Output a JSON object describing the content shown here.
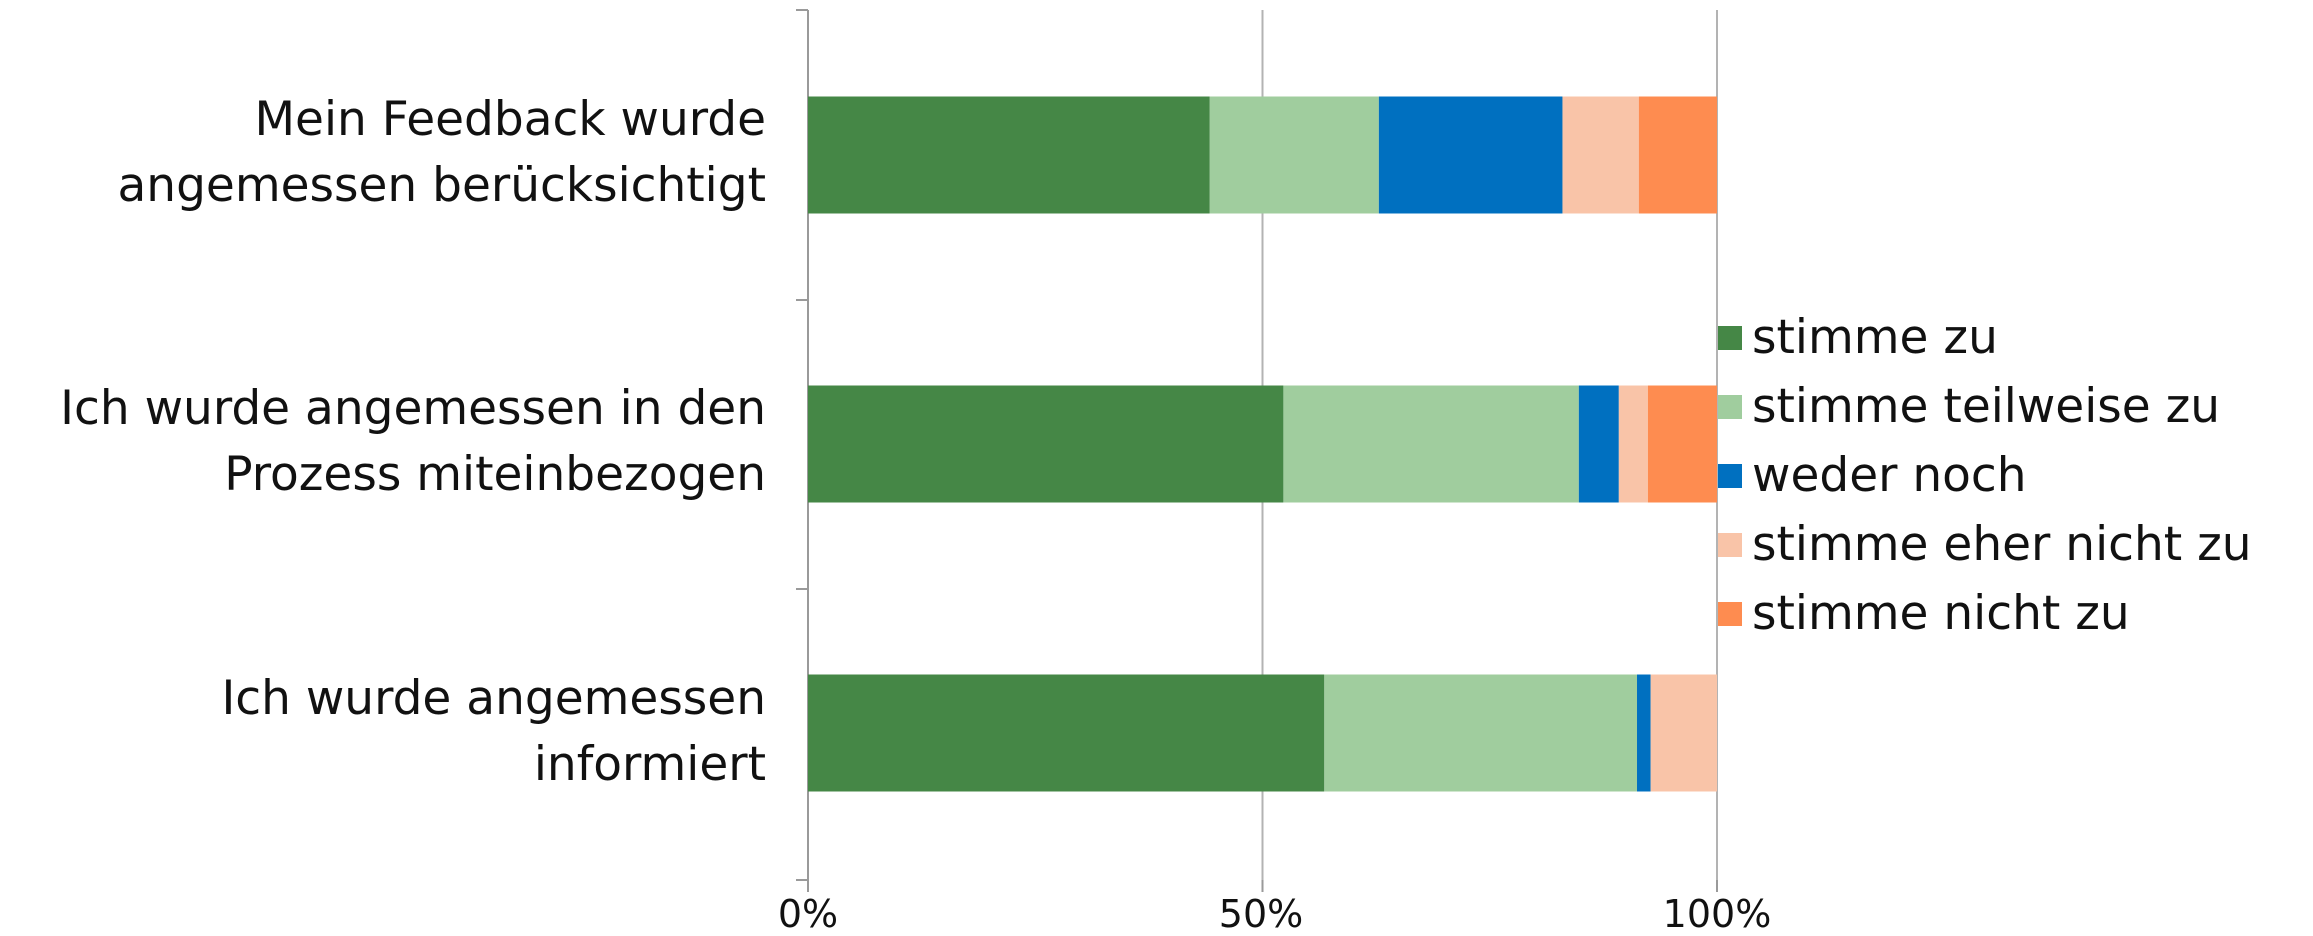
{
  "chart_data": {
    "type": "bar",
    "orientation": "horizontal",
    "stacked": "percent",
    "title": "",
    "xlabel": "",
    "ylabel": "",
    "xlim": [
      0,
      100
    ],
    "x_ticks": [
      "0%",
      "50%",
      "100%"
    ],
    "grid": true,
    "legend_position": "right",
    "categories": [
      [
        "Mein Feedback wurde",
        "angemessen berücksichtigt"
      ],
      [
        "Ich wurde angemessen in den",
        "Prozess miteinbezogen"
      ],
      [
        "Ich wurde angemessen",
        "informiert"
      ]
    ],
    "series": [
      {
        "name": "stimme zu",
        "color": "#458746",
        "values": [
          44.2,
          52.3,
          56.8
        ]
      },
      {
        "name": "stimme teilweise zu",
        "color": "#a0cd9e",
        "values": [
          18.6,
          32.5,
          34.4
        ]
      },
      {
        "name": "weder noch",
        "color": "#0070c0",
        "values": [
          20.2,
          4.4,
          1.5
        ]
      },
      {
        "name": "stimme eher nicht zu",
        "color": "#f9c4a8",
        "values": [
          8.4,
          3.2,
          7.3
        ]
      },
      {
        "name": "stimme nicht zu",
        "color": "#fe8c50",
        "values": [
          8.6,
          7.6,
          0.0
        ]
      }
    ]
  }
}
